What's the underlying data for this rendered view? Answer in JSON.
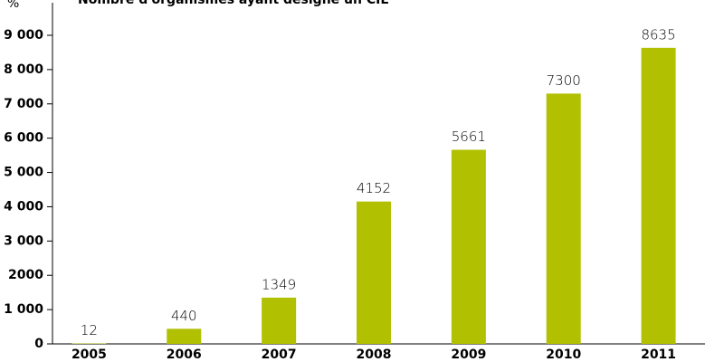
{
  "chart_data": {
    "type": "bar",
    "title": "Nombre d'organismes ayant désigné un CIL",
    "y_label": "%",
    "categories": [
      "2005",
      "2006",
      "2007",
      "2008",
      "2009",
      "2010",
      "2011"
    ],
    "values": [
      12,
      440,
      1349,
      4152,
      5661,
      7300,
      8635
    ],
    "color": "#b1c000",
    "ylim": [
      0,
      9000
    ],
    "yticks": [
      0,
      {
        "value": 1000,
        "label": "1 000"
      },
      {
        "value": 2000,
        "label": "2000"
      },
      {
        "value": 3000,
        "label": "3 000"
      },
      {
        "value": 4000,
        "label": "4 000"
      },
      {
        "value": 5000,
        "label": "5 000"
      },
      {
        "value": 6000,
        "label": "6 000"
      },
      {
        "value": 7000,
        "label": "7 000"
      },
      {
        "value": 8000,
        "label": "8 000"
      },
      {
        "value": 9000,
        "label": "9 000"
      }
    ],
    "grid": false
  }
}
